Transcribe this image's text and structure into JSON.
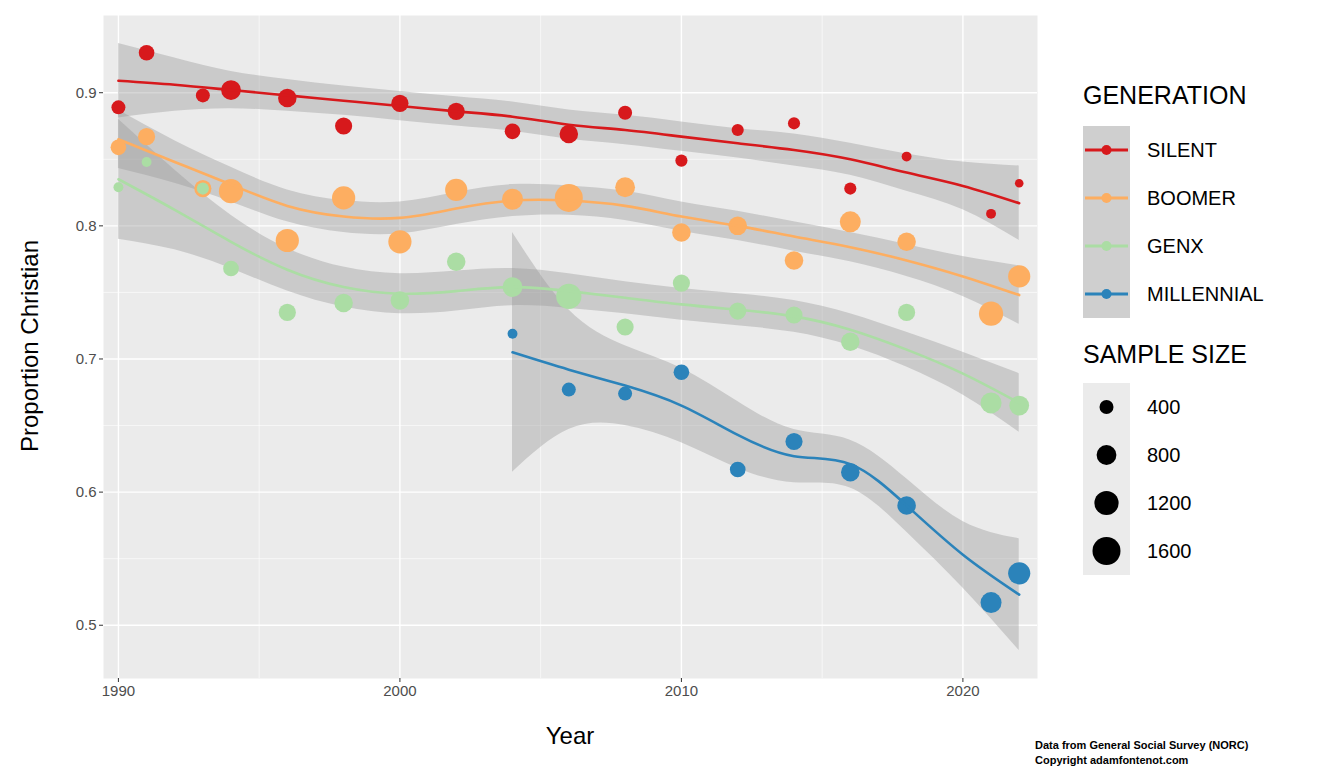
{
  "chart_data": {
    "type": "scatter",
    "x_label": "Year",
    "y_label": "Proportion Christian",
    "caption": [
      "Data from General Social Survey (NORC)",
      "Copyright adamfontenot.com"
    ],
    "legend": "right",
    "legend_title": "GENERATION",
    "size_legend": {
      "title": "SAMPLE SIZE",
      "values": [
        400,
        800,
        1200,
        1600
      ]
    },
    "grid": true,
    "xlim": [
      1989.47,
      2022.65
    ],
    "xticks": [
      1990,
      2000,
      2010,
      2020
    ],
    "ylim": [
      0.46,
      0.958
    ],
    "yticks": [
      0.5,
      0.6,
      0.7,
      0.8,
      0.9
    ],
    "x": [
      1990,
      1991,
      1993,
      1994,
      1996,
      1998,
      2000,
      2002,
      2004,
      2006,
      2008,
      2010,
      2012,
      2014,
      2016,
      2018,
      2021,
      2022
    ],
    "series": [
      {
        "name": "SILENT",
        "color": "#d7191c",
        "marker": "circle",
        "values": [
          0.889,
          0.93,
          0.898,
          0.902,
          0.896,
          0.875,
          0.892,
          0.886,
          0.871,
          0.869,
          0.885,
          0.849,
          0.872,
          0.877,
          0.828,
          0.852,
          0.809,
          0.832
        ],
        "sample_size": [
          400,
          500,
          400,
          800,
          700,
          600,
          600,
          600,
          500,
          700,
          400,
          300,
          300,
          300,
          300,
          200,
          200,
          150
        ],
        "trend": {
          "x": [
            1990,
            1992,
            1994,
            1996,
            1998,
            2000,
            2002,
            2004,
            2006,
            2008,
            2010,
            2012,
            2014,
            2016,
            2018,
            2020,
            2022
          ],
          "values": [
            0.909,
            0.906,
            0.902,
            0.898,
            0.894,
            0.89,
            0.886,
            0.882,
            0.876,
            0.872,
            0.867,
            0.862,
            0.857,
            0.85,
            0.84,
            0.83,
            0.817
          ],
          "lower": [
            0.881,
            0.886,
            0.888,
            0.886,
            0.883,
            0.879,
            0.875,
            0.871,
            0.865,
            0.861,
            0.856,
            0.851,
            0.845,
            0.838,
            0.826,
            0.812,
            0.789
          ],
          "upper": [
            0.937,
            0.926,
            0.916,
            0.91,
            0.905,
            0.901,
            0.897,
            0.893,
            0.887,
            0.883,
            0.878,
            0.873,
            0.869,
            0.862,
            0.854,
            0.848,
            0.845
          ]
        }
      },
      {
        "name": "BOOMER",
        "color": "#fdae61",
        "marker": "circle",
        "values": [
          0.859,
          0.867,
          0.828,
          0.826,
          0.789,
          0.821,
          0.788,
          0.827,
          0.82,
          0.821,
          0.829,
          0.795,
          0.8,
          0.774,
          0.803,
          0.788,
          0.734,
          0.762
        ],
        "sample_size": [
          500,
          600,
          600,
          1200,
          1100,
          1100,
          1100,
          1000,
          900,
          1600,
          800,
          700,
          700,
          700,
          900,
          700,
          1200,
          1000
        ],
        "trend": {
          "x": [
            1990,
            1992,
            1994,
            1996,
            1998,
            2000,
            2002,
            2004,
            2006,
            2008,
            2010,
            2012,
            2014,
            2016,
            2018,
            2020,
            2022
          ],
          "values": [
            0.865,
            0.848,
            0.831,
            0.815,
            0.807,
            0.806,
            0.813,
            0.819,
            0.819,
            0.815,
            0.807,
            0.8,
            0.792,
            0.784,
            0.774,
            0.762,
            0.748
          ],
          "lower": [
            0.843,
            0.832,
            0.818,
            0.803,
            0.795,
            0.794,
            0.801,
            0.807,
            0.808,
            0.804,
            0.796,
            0.789,
            0.781,
            0.773,
            0.762,
            0.747,
            0.726
          ],
          "upper": [
            0.887,
            0.864,
            0.844,
            0.827,
            0.819,
            0.818,
            0.825,
            0.831,
            0.83,
            0.826,
            0.818,
            0.811,
            0.803,
            0.795,
            0.786,
            0.777,
            0.77
          ]
        }
      },
      {
        "name": "GENX",
        "color": "#abdda4",
        "marker": "circle",
        "values": [
          0.829,
          0.848,
          0.828,
          0.768,
          0.735,
          0.742,
          0.744,
          0.773,
          0.754,
          0.747,
          0.724,
          0.757,
          0.736,
          0.733,
          0.713,
          0.735,
          0.667,
          0.665
        ],
        "sample_size": [
          200,
          200,
          300,
          500,
          600,
          700,
          700,
          700,
          800,
          1300,
          600,
          600,
          600,
          600,
          700,
          600,
          900,
          800
        ],
        "trend": {
          "x": [
            1990,
            1992,
            1994,
            1996,
            1998,
            2000,
            2002,
            2004,
            2006,
            2008,
            2010,
            2012,
            2014,
            2016,
            2018,
            2020,
            2022
          ],
          "values": [
            0.835,
            0.812,
            0.788,
            0.767,
            0.754,
            0.749,
            0.751,
            0.754,
            0.751,
            0.746,
            0.741,
            0.737,
            0.732,
            0.722,
            0.707,
            0.689,
            0.667
          ],
          "lower": [
            0.79,
            0.782,
            0.768,
            0.751,
            0.739,
            0.734,
            0.736,
            0.74,
            0.738,
            0.734,
            0.729,
            0.725,
            0.72,
            0.71,
            0.694,
            0.673,
            0.645
          ],
          "upper": [
            0.88,
            0.842,
            0.808,
            0.783,
            0.769,
            0.764,
            0.766,
            0.768,
            0.764,
            0.758,
            0.753,
            0.749,
            0.744,
            0.734,
            0.72,
            0.705,
            0.689
          ]
        }
      },
      {
        "name": "MILLENNIAL",
        "color": "#2b83ba",
        "marker": "circle",
        "values": [
          null,
          null,
          null,
          null,
          null,
          null,
          null,
          null,
          0.719,
          0.677,
          0.674,
          0.69,
          0.617,
          0.638,
          0.615,
          0.59,
          0.517,
          0.539
        ],
        "sample_size": [
          null,
          null,
          null,
          null,
          null,
          null,
          null,
          null,
          200,
          400,
          400,
          500,
          500,
          600,
          700,
          700,
          900,
          1000
        ],
        "trend": {
          "x": [
            2004,
            2006,
            2008,
            2010,
            2012,
            2014,
            2016,
            2018,
            2020,
            2022
          ],
          "values": [
            0.705,
            0.692,
            0.68,
            0.665,
            0.643,
            0.627,
            0.621,
            0.59,
            0.553,
            0.523
          ],
          "lower": [
            0.615,
            0.647,
            0.65,
            0.637,
            0.618,
            0.607,
            0.603,
            0.57,
            0.528,
            0.481
          ],
          "upper": [
            0.795,
            0.737,
            0.71,
            0.693,
            0.668,
            0.647,
            0.639,
            0.61,
            0.578,
            0.565
          ]
        }
      }
    ]
  }
}
